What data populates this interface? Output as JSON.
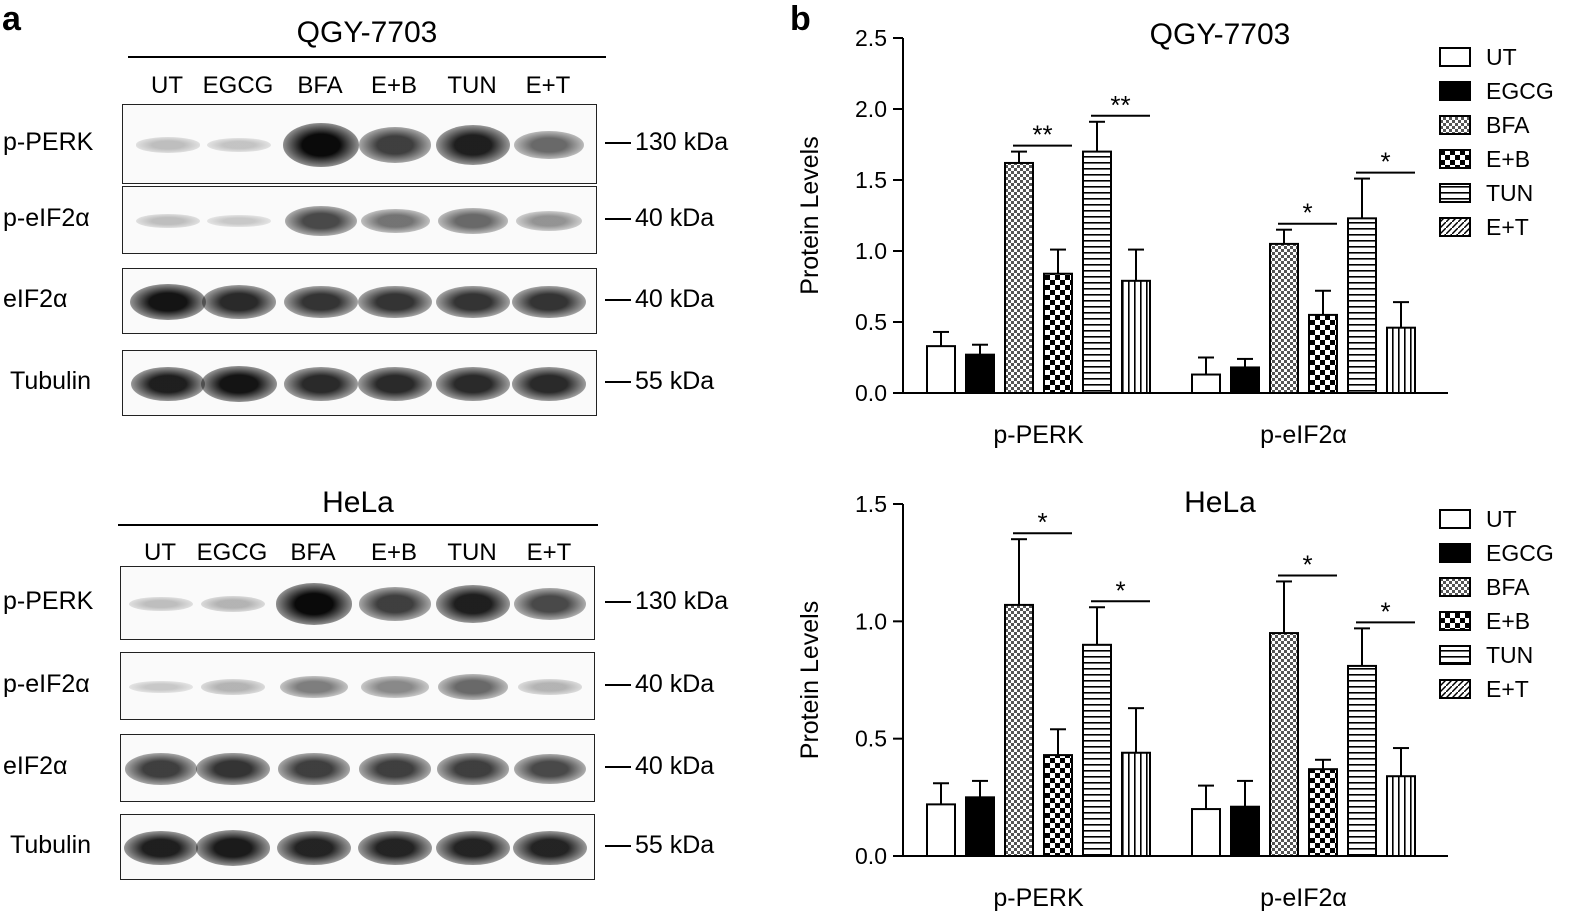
{
  "panels": {
    "a": "a",
    "b": "b"
  },
  "blots": [
    {
      "cell_line": "QGY-7703",
      "lanes": [
        "UT",
        "EGCG",
        "BFA",
        "E+B",
        "TUN",
        "E+T"
      ],
      "rows": [
        {
          "label": "p-PERK",
          "marker": "130 kDa",
          "intensity": [
            0.15,
            0.12,
            1.0,
            0.75,
            0.9,
            0.55
          ]
        },
        {
          "label": "p-eIF2α",
          "marker": "40 kDa",
          "intensity": [
            0.15,
            0.1,
            0.7,
            0.5,
            0.55,
            0.35
          ]
        },
        {
          "label": "eIF2α",
          "marker": "40 kDa",
          "intensity": [
            0.95,
            0.85,
            0.8,
            0.8,
            0.8,
            0.8
          ]
        },
        {
          "label": "Tubulin",
          "marker": "55 kDa",
          "intensity": [
            0.9,
            0.95,
            0.85,
            0.85,
            0.85,
            0.85
          ]
        }
      ]
    },
    {
      "cell_line": "HeLa",
      "lanes": [
        "UT",
        "EGCG",
        "BFA",
        "E+B",
        "TUN",
        "E+T"
      ],
      "rows": [
        {
          "label": "p-PERK",
          "marker": "130 kDa",
          "intensity": [
            0.15,
            0.2,
            1.0,
            0.75,
            0.9,
            0.7
          ]
        },
        {
          "label": "p-eIF2α",
          "marker": "40 kDa",
          "intensity": [
            0.1,
            0.2,
            0.45,
            0.4,
            0.55,
            0.2
          ]
        },
        {
          "label": "eIF2α",
          "marker": "40 kDa",
          "intensity": [
            0.75,
            0.8,
            0.75,
            0.75,
            0.75,
            0.7
          ]
        },
        {
          "label": "Tubulin",
          "marker": "55 kDa",
          "intensity": [
            0.9,
            0.92,
            0.88,
            0.88,
            0.88,
            0.88
          ]
        }
      ]
    }
  ],
  "chart_data": [
    {
      "type": "bar",
      "title": "QGY-7703",
      "ylabel": "Protein Levels",
      "ylim": [
        0,
        2.5
      ],
      "yticks": [
        "0.0",
        "0.5",
        "1.0",
        "1.5",
        "2.0",
        "2.5"
      ],
      "categories": [
        "p-PERK",
        "p-eIF2α"
      ],
      "series": [
        {
          "name": "UT",
          "values": [
            0.33,
            0.13
          ],
          "errors": [
            0.1,
            0.12
          ]
        },
        {
          "name": "EGCG",
          "values": [
            0.27,
            0.18
          ],
          "errors": [
            0.07,
            0.06
          ]
        },
        {
          "name": "BFA",
          "values": [
            1.62,
            1.05
          ],
          "errors": [
            0.08,
            0.1
          ]
        },
        {
          "name": "E+B",
          "values": [
            0.84,
            0.55
          ],
          "errors": [
            0.17,
            0.17
          ]
        },
        {
          "name": "TUN",
          "values": [
            1.7,
            1.23
          ],
          "errors": [
            0.21,
            0.28
          ]
        },
        {
          "name": "E+T",
          "values": [
            0.79,
            0.46
          ],
          "errors": [
            0.22,
            0.18
          ]
        }
      ],
      "significance": [
        {
          "category": "p-PERK",
          "from": "BFA",
          "to": "E+B",
          "label": "**"
        },
        {
          "category": "p-PERK",
          "from": "TUN",
          "to": "E+T",
          "label": "**"
        },
        {
          "category": "p-eIF2α",
          "from": "BFA",
          "to": "E+B",
          "label": "*"
        },
        {
          "category": "p-eIF2α",
          "from": "TUN",
          "to": "E+T",
          "label": "*"
        }
      ],
      "legend": "right"
    },
    {
      "type": "bar",
      "title": "HeLa",
      "ylabel": "Protein Levels",
      "ylim": [
        0,
        1.5
      ],
      "yticks": [
        "0.0",
        "0.5",
        "1.0",
        "1.5"
      ],
      "categories": [
        "p-PERK",
        "p-eIF2α"
      ],
      "series": [
        {
          "name": "UT",
          "values": [
            0.22,
            0.2
          ],
          "errors": [
            0.09,
            0.1
          ]
        },
        {
          "name": "EGCG",
          "values": [
            0.25,
            0.21
          ],
          "errors": [
            0.07,
            0.11
          ]
        },
        {
          "name": "BFA",
          "values": [
            1.07,
            0.95
          ],
          "errors": [
            0.28,
            0.22
          ]
        },
        {
          "name": "E+B",
          "values": [
            0.43,
            0.37
          ],
          "errors": [
            0.11,
            0.04
          ]
        },
        {
          "name": "TUN",
          "values": [
            0.9,
            0.81
          ],
          "errors": [
            0.16,
            0.16
          ]
        },
        {
          "name": "E+T",
          "values": [
            0.44,
            0.34
          ],
          "errors": [
            0.19,
            0.12
          ]
        }
      ],
      "significance": [
        {
          "category": "p-PERK",
          "from": "BFA",
          "to": "E+B",
          "label": "*"
        },
        {
          "category": "p-PERK",
          "from": "TUN",
          "to": "E+T",
          "label": "*"
        },
        {
          "category": "p-eIF2α",
          "from": "BFA",
          "to": "E+B",
          "label": "*"
        },
        {
          "category": "p-eIF2α",
          "from": "TUN",
          "to": "E+T",
          "label": "*"
        }
      ],
      "legend": "right"
    }
  ]
}
